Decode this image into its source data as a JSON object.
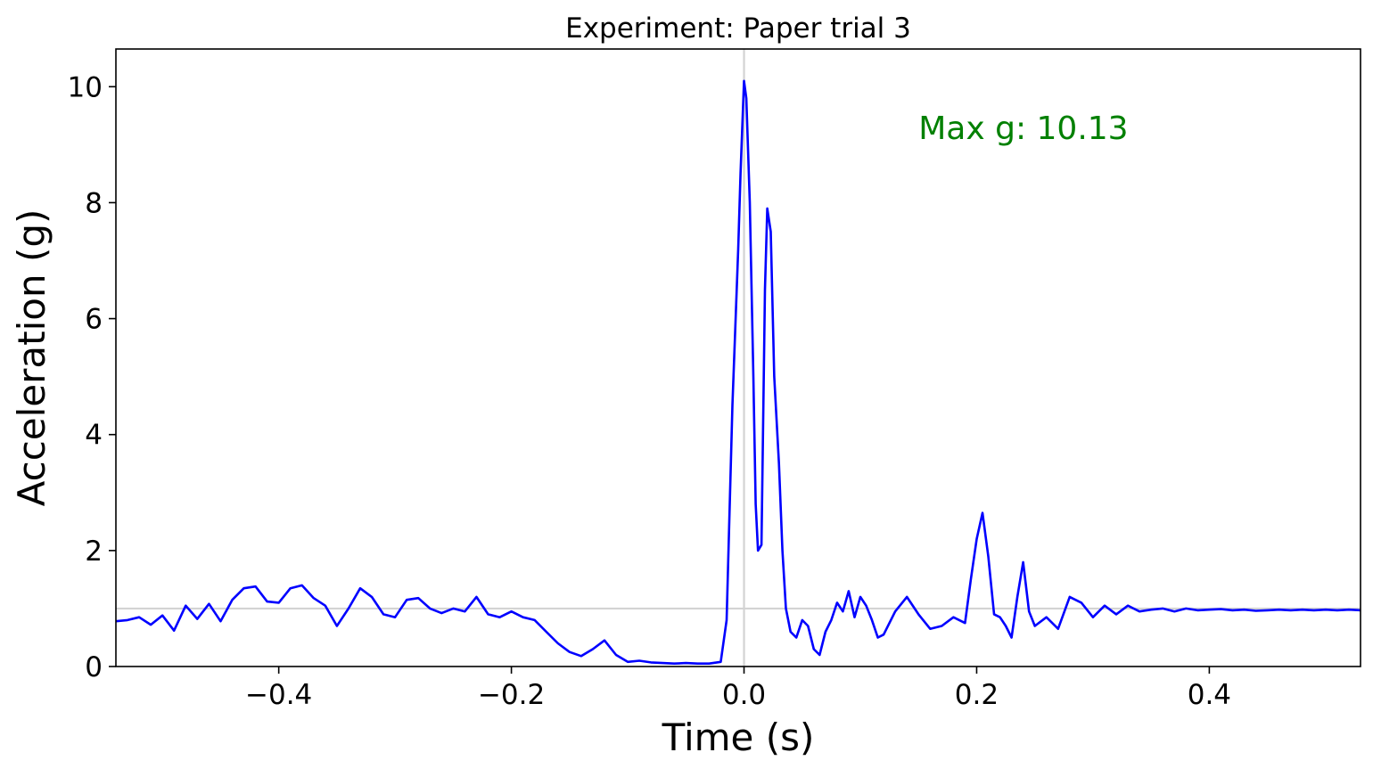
{
  "chart_data": {
    "type": "line",
    "title": "Experiment: Paper trial 3",
    "xlabel": "Time (s)",
    "ylabel": "Acceleration (g)",
    "xlim": [
      -0.54,
      0.53
    ],
    "ylim": [
      0,
      10.65
    ],
    "xticks": [
      -0.4,
      -0.2,
      0.0,
      0.2,
      0.4
    ],
    "xtick_labels": [
      "−0.4",
      "−0.2",
      "0.0",
      "0.2",
      "0.4"
    ],
    "yticks": [
      0,
      2,
      4,
      6,
      8,
      10
    ],
    "ytick_labels": [
      "0",
      "2",
      "4",
      "6",
      "8",
      "10"
    ],
    "reference_lines": {
      "horizontal_y": 1.0,
      "vertical_x": 0.0,
      "color": "#d3d3d3"
    },
    "annotation": {
      "text": "Max g: 10.13",
      "color": "#008000",
      "x": 0.15,
      "y": 9.1
    },
    "series": [
      {
        "name": "acceleration",
        "color": "#0000ff",
        "x": [
          -0.54,
          -0.53,
          -0.52,
          -0.51,
          -0.5,
          -0.49,
          -0.48,
          -0.47,
          -0.46,
          -0.45,
          -0.44,
          -0.43,
          -0.42,
          -0.41,
          -0.4,
          -0.39,
          -0.38,
          -0.37,
          -0.36,
          -0.35,
          -0.34,
          -0.33,
          -0.32,
          -0.31,
          -0.3,
          -0.29,
          -0.28,
          -0.27,
          -0.26,
          -0.25,
          -0.24,
          -0.23,
          -0.22,
          -0.21,
          -0.2,
          -0.19,
          -0.18,
          -0.17,
          -0.16,
          -0.15,
          -0.14,
          -0.13,
          -0.12,
          -0.11,
          -0.1,
          -0.09,
          -0.08,
          -0.07,
          -0.06,
          -0.05,
          -0.04,
          -0.03,
          -0.02,
          -0.015,
          -0.01,
          -0.005,
          -0.003,
          0.0,
          0.002,
          0.005,
          0.008,
          0.01,
          0.012,
          0.015,
          0.018,
          0.02,
          0.023,
          0.026,
          0.03,
          0.033,
          0.036,
          0.04,
          0.045,
          0.05,
          0.055,
          0.06,
          0.065,
          0.07,
          0.075,
          0.08,
          0.085,
          0.09,
          0.095,
          0.1,
          0.105,
          0.11,
          0.115,
          0.12,
          0.13,
          0.14,
          0.15,
          0.16,
          0.17,
          0.18,
          0.19,
          0.195,
          0.2,
          0.205,
          0.21,
          0.215,
          0.22,
          0.225,
          0.23,
          0.235,
          0.24,
          0.245,
          0.25,
          0.26,
          0.27,
          0.28,
          0.29,
          0.3,
          0.31,
          0.32,
          0.33,
          0.34,
          0.35,
          0.36,
          0.37,
          0.38,
          0.39,
          0.4,
          0.41,
          0.42,
          0.43,
          0.44,
          0.45,
          0.46,
          0.47,
          0.48,
          0.49,
          0.5,
          0.51,
          0.52,
          0.53
        ],
        "y": [
          0.78,
          0.8,
          0.85,
          0.72,
          0.88,
          0.62,
          1.05,
          0.82,
          1.08,
          0.78,
          1.15,
          1.35,
          1.38,
          1.12,
          1.1,
          1.35,
          1.4,
          1.18,
          1.05,
          0.7,
          1.0,
          1.35,
          1.2,
          0.9,
          0.85,
          1.15,
          1.18,
          1.0,
          0.92,
          1.0,
          0.95,
          1.2,
          0.9,
          0.85,
          0.95,
          0.85,
          0.8,
          0.6,
          0.4,
          0.25,
          0.18,
          0.3,
          0.45,
          0.2,
          0.08,
          0.1,
          0.07,
          0.06,
          0.05,
          0.06,
          0.05,
          0.05,
          0.08,
          0.8,
          4.5,
          7.2,
          8.5,
          10.1,
          9.8,
          8.0,
          5.0,
          2.8,
          2.0,
          2.1,
          6.5,
          7.9,
          7.5,
          5.0,
          3.5,
          2.0,
          1.0,
          0.6,
          0.5,
          0.8,
          0.7,
          0.3,
          0.2,
          0.6,
          0.8,
          1.1,
          0.95,
          1.3,
          0.85,
          1.2,
          1.05,
          0.8,
          0.5,
          0.55,
          0.95,
          1.2,
          0.9,
          0.65,
          0.7,
          0.85,
          0.75,
          1.5,
          2.2,
          2.65,
          1.9,
          0.9,
          0.85,
          0.7,
          0.5,
          1.2,
          1.8,
          0.95,
          0.7,
          0.85,
          0.65,
          1.2,
          1.1,
          0.85,
          1.05,
          0.9,
          1.05,
          0.95,
          0.98,
          1.0,
          0.95,
          1.0,
          0.97,
          0.98,
          0.99,
          0.97,
          0.98,
          0.96,
          0.97,
          0.98,
          0.97,
          0.98,
          0.97,
          0.98,
          0.97,
          0.98,
          0.97
        ]
      }
    ]
  }
}
